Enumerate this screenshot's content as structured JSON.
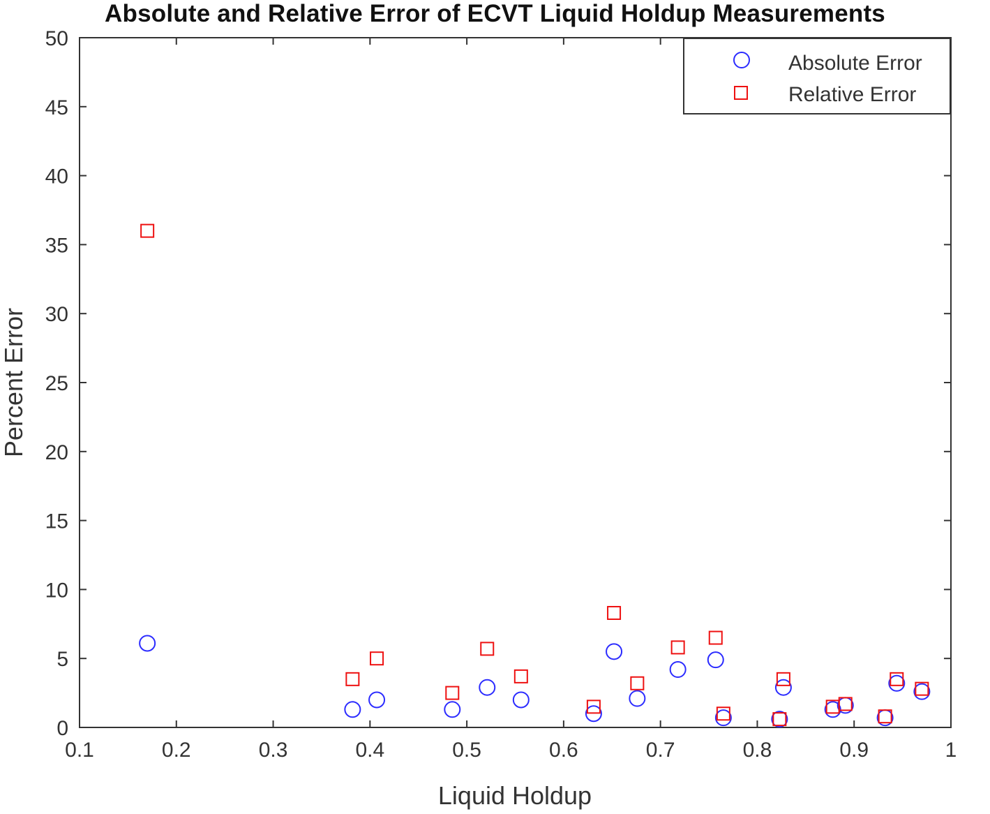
{
  "chart_data": {
    "type": "scatter",
    "title": "Absolute and Relative Error of ECVT Liquid Holdup Measurements",
    "xlabel": "Liquid Holdup",
    "ylabel": "Percent Error",
    "xlim": [
      0.1,
      1
    ],
    "ylim": [
      0,
      50
    ],
    "xticks": [
      "0.1",
      "0.2",
      "0.3",
      "0.4",
      "0.5",
      "0.6",
      "0.7",
      "0.8",
      "0.9",
      "1"
    ],
    "yticks": [
      "0",
      "5",
      "10",
      "15",
      "20",
      "25",
      "30",
      "35",
      "40",
      "45",
      "50"
    ],
    "grid": false,
    "legend_position": "top-right",
    "series": [
      {
        "name": "Absolute Error",
        "marker": "circle",
        "color": "#2b2bff",
        "points": [
          [
            0.17,
            6.1
          ],
          [
            0.382,
            1.3
          ],
          [
            0.407,
            2.0
          ],
          [
            0.485,
            1.3
          ],
          [
            0.521,
            2.9
          ],
          [
            0.556,
            2.0
          ],
          [
            0.631,
            1.0
          ],
          [
            0.652,
            5.5
          ],
          [
            0.676,
            2.1
          ],
          [
            0.718,
            4.2
          ],
          [
            0.757,
            4.9
          ],
          [
            0.765,
            0.7
          ],
          [
            0.823,
            0.6
          ],
          [
            0.827,
            2.9
          ],
          [
            0.878,
            1.3
          ],
          [
            0.891,
            1.6
          ],
          [
            0.932,
            0.7
          ],
          [
            0.944,
            3.2
          ],
          [
            0.97,
            2.6
          ]
        ]
      },
      {
        "name": "Relative Error",
        "marker": "square",
        "color": "#ee1111",
        "points": [
          [
            0.17,
            36.0
          ],
          [
            0.382,
            3.5
          ],
          [
            0.407,
            5.0
          ],
          [
            0.485,
            2.5
          ],
          [
            0.521,
            5.7
          ],
          [
            0.556,
            3.7
          ],
          [
            0.631,
            1.5
          ],
          [
            0.652,
            8.3
          ],
          [
            0.676,
            3.2
          ],
          [
            0.718,
            5.8
          ],
          [
            0.757,
            6.5
          ],
          [
            0.765,
            1.0
          ],
          [
            0.823,
            0.6
          ],
          [
            0.827,
            3.5
          ],
          [
            0.878,
            1.5
          ],
          [
            0.891,
            1.7
          ],
          [
            0.932,
            0.8
          ],
          [
            0.944,
            3.5
          ],
          [
            0.97,
            2.8
          ]
        ]
      }
    ]
  }
}
